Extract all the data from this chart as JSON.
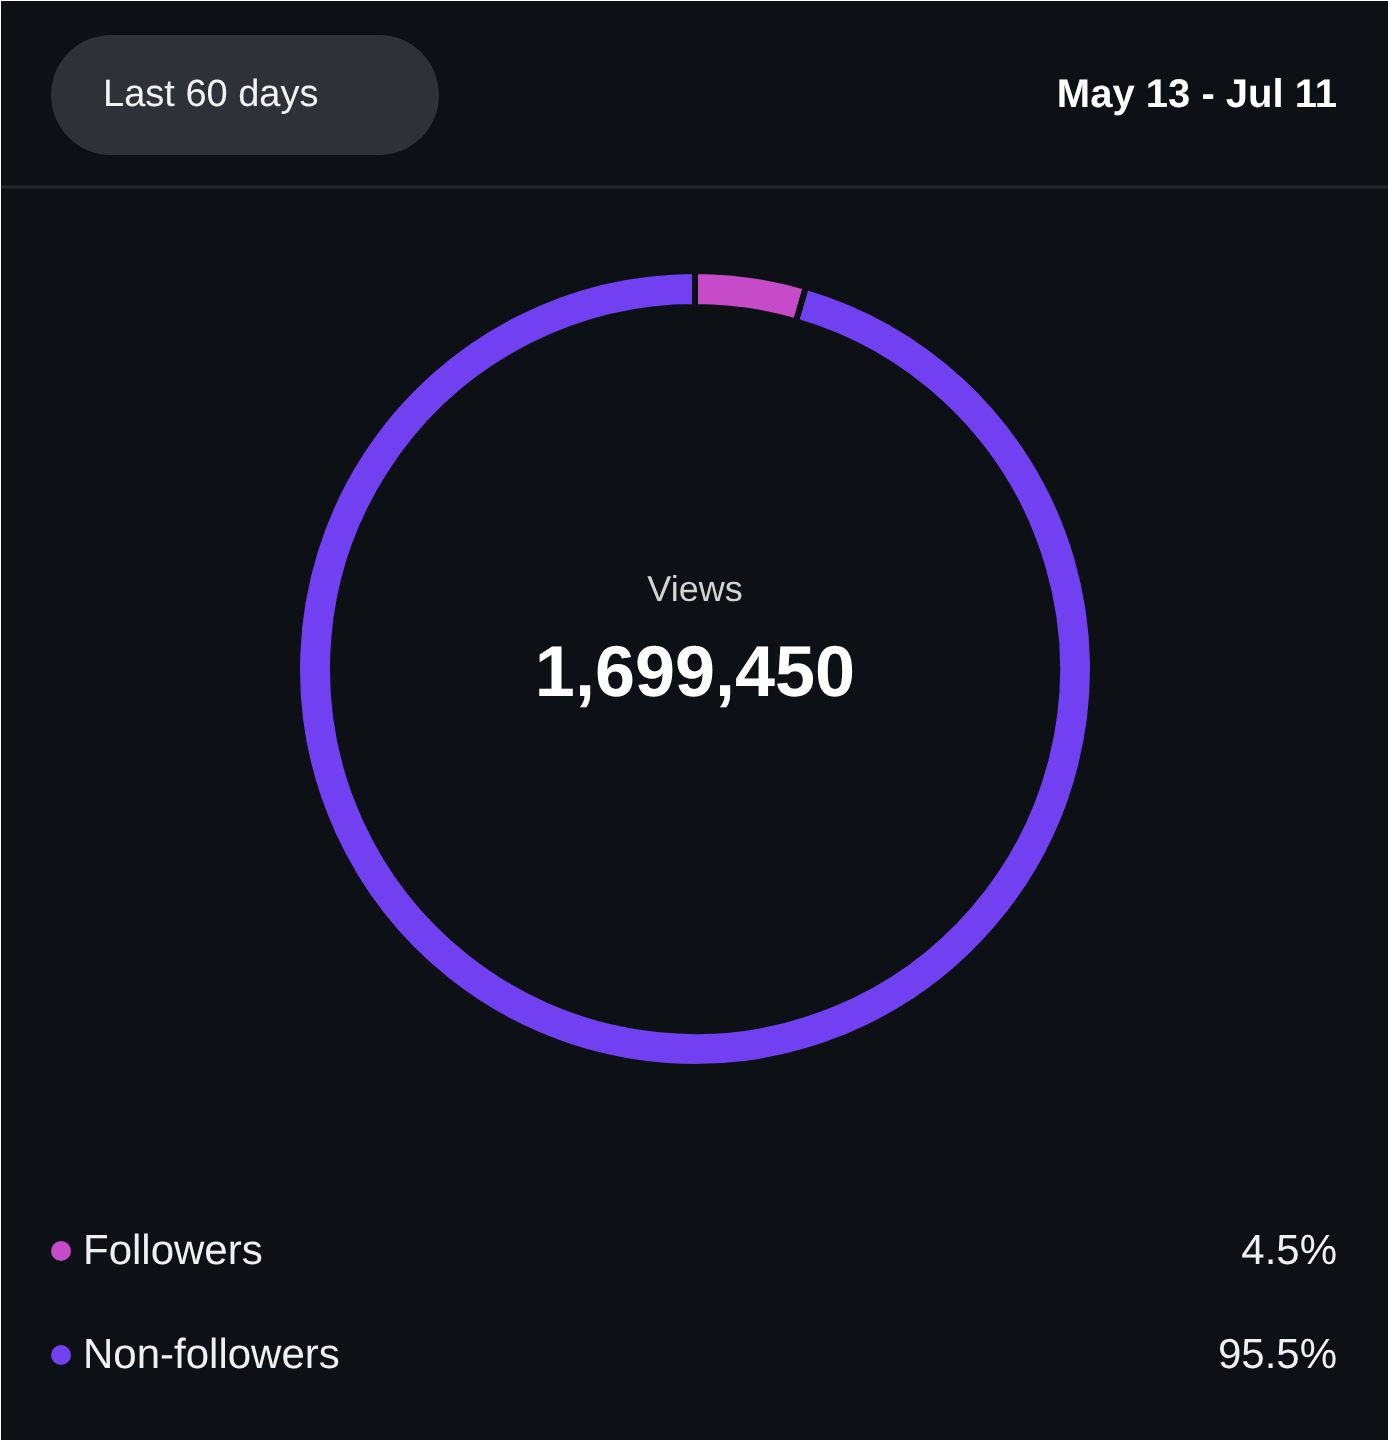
{
  "chart_data": {
    "type": "donut",
    "title": "Views",
    "subtitle": "1,699,450",
    "annotations": [
      "Last 60 days",
      "May 13 - Jul 11"
    ],
    "categories": [
      "Followers",
      "Non-followers"
    ],
    "values": [
      4.5,
      95.5
    ],
    "colors": [
      "#c64bc8",
      "#7140f0"
    ],
    "value_labels": [
      "4.5%",
      "95.5%"
    ],
    "legend": "bottom"
  }
}
